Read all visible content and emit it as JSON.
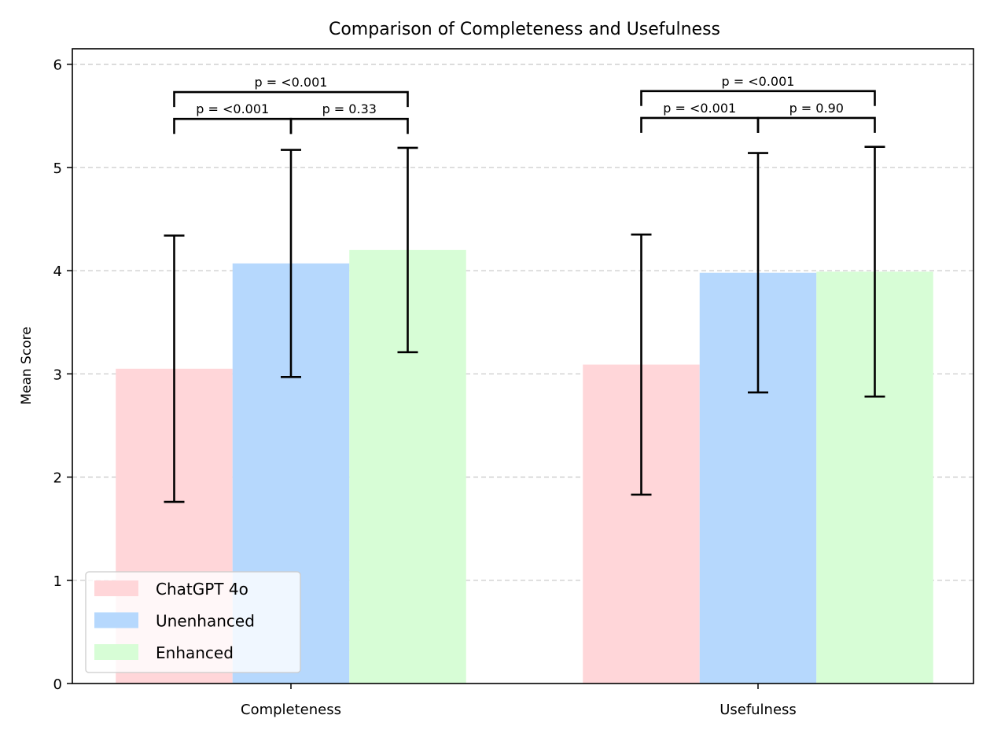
{
  "chart_data": {
    "type": "bar",
    "title": "Comparison of Completeness and Usefulness",
    "xlabel": "",
    "ylabel": "Mean Score",
    "ylim": [
      0,
      6.15
    ],
    "yticks": [
      0,
      1,
      2,
      3,
      4,
      5,
      6
    ],
    "grid": "y-dashed",
    "legend_position": "bottom-left",
    "categories": [
      "Completeness",
      "Usefulness"
    ],
    "series": [
      {
        "name": "ChatGPT 4o",
        "color": "#ffd6d9",
        "values": [
          3.05,
          3.09
        ],
        "errors": [
          1.29,
          1.26
        ]
      },
      {
        "name": "Unenhanced",
        "color": "#b6d8fd",
        "values": [
          4.07,
          3.98
        ],
        "errors": [
          1.1,
          1.16
        ]
      },
      {
        "name": "Enhanced",
        "color": "#d7fdd6",
        "values": [
          4.2,
          3.99
        ],
        "errors": [
          0.99,
          1.21
        ]
      }
    ],
    "annotations": [
      {
        "category": 0,
        "from": 0,
        "to": 2,
        "level": "upper",
        "y": 5.73,
        "label": "p = <0.001"
      },
      {
        "category": 0,
        "from": 0,
        "to": 1,
        "level": "lower",
        "y": 5.47,
        "label": "p = <0.001"
      },
      {
        "category": 0,
        "from": 1,
        "to": 2,
        "level": "lower",
        "y": 5.47,
        "label": "p = 0.33"
      },
      {
        "category": 1,
        "from": 0,
        "to": 2,
        "level": "upper",
        "y": 5.74,
        "label": "p = <0.001"
      },
      {
        "category": 1,
        "from": 0,
        "to": 1,
        "level": "lower",
        "y": 5.48,
        "label": "p = <0.001"
      },
      {
        "category": 1,
        "from": 1,
        "to": 2,
        "level": "lower",
        "y": 5.48,
        "label": "p = 0.90"
      }
    ]
  }
}
